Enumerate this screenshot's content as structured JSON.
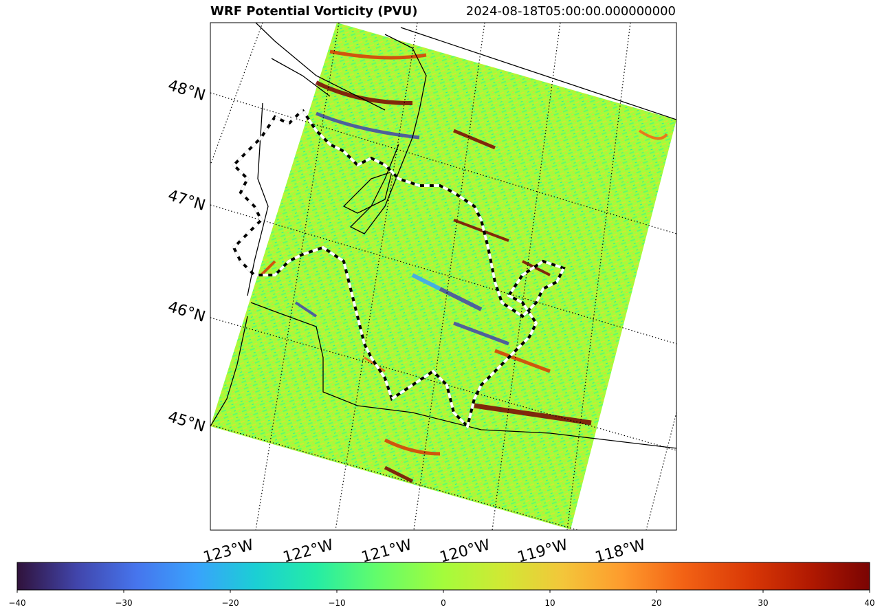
{
  "title": {
    "left": "WRF Potential Vorticity (PVU)",
    "right": "2024-08-18T05:00:00.000000000"
  },
  "chart_data": {
    "type": "heatmap",
    "variable": "Potential Vorticity (PVU)",
    "timestamp": "2024-08-18T05:00:00.000000000",
    "map": {
      "projection": "rotated lat/lon",
      "latitude_labels": [
        "48°N",
        "47°N",
        "46°N",
        "45°N"
      ],
      "longitude_labels": [
        "123°W",
        "122°W",
        "121°W",
        "120°W",
        "119°W",
        "118°W"
      ],
      "gridlines": "dotted"
    },
    "colorbar": {
      "colormap": "turbo",
      "range": [
        -40,
        40
      ],
      "ticks": [
        -40,
        -30,
        -20,
        -10,
        0,
        10,
        20,
        30,
        40
      ],
      "tick_labels": [
        "−40",
        "−30",
        "−20",
        "−10",
        "0",
        "10",
        "20",
        "30",
        "40"
      ]
    }
  }
}
